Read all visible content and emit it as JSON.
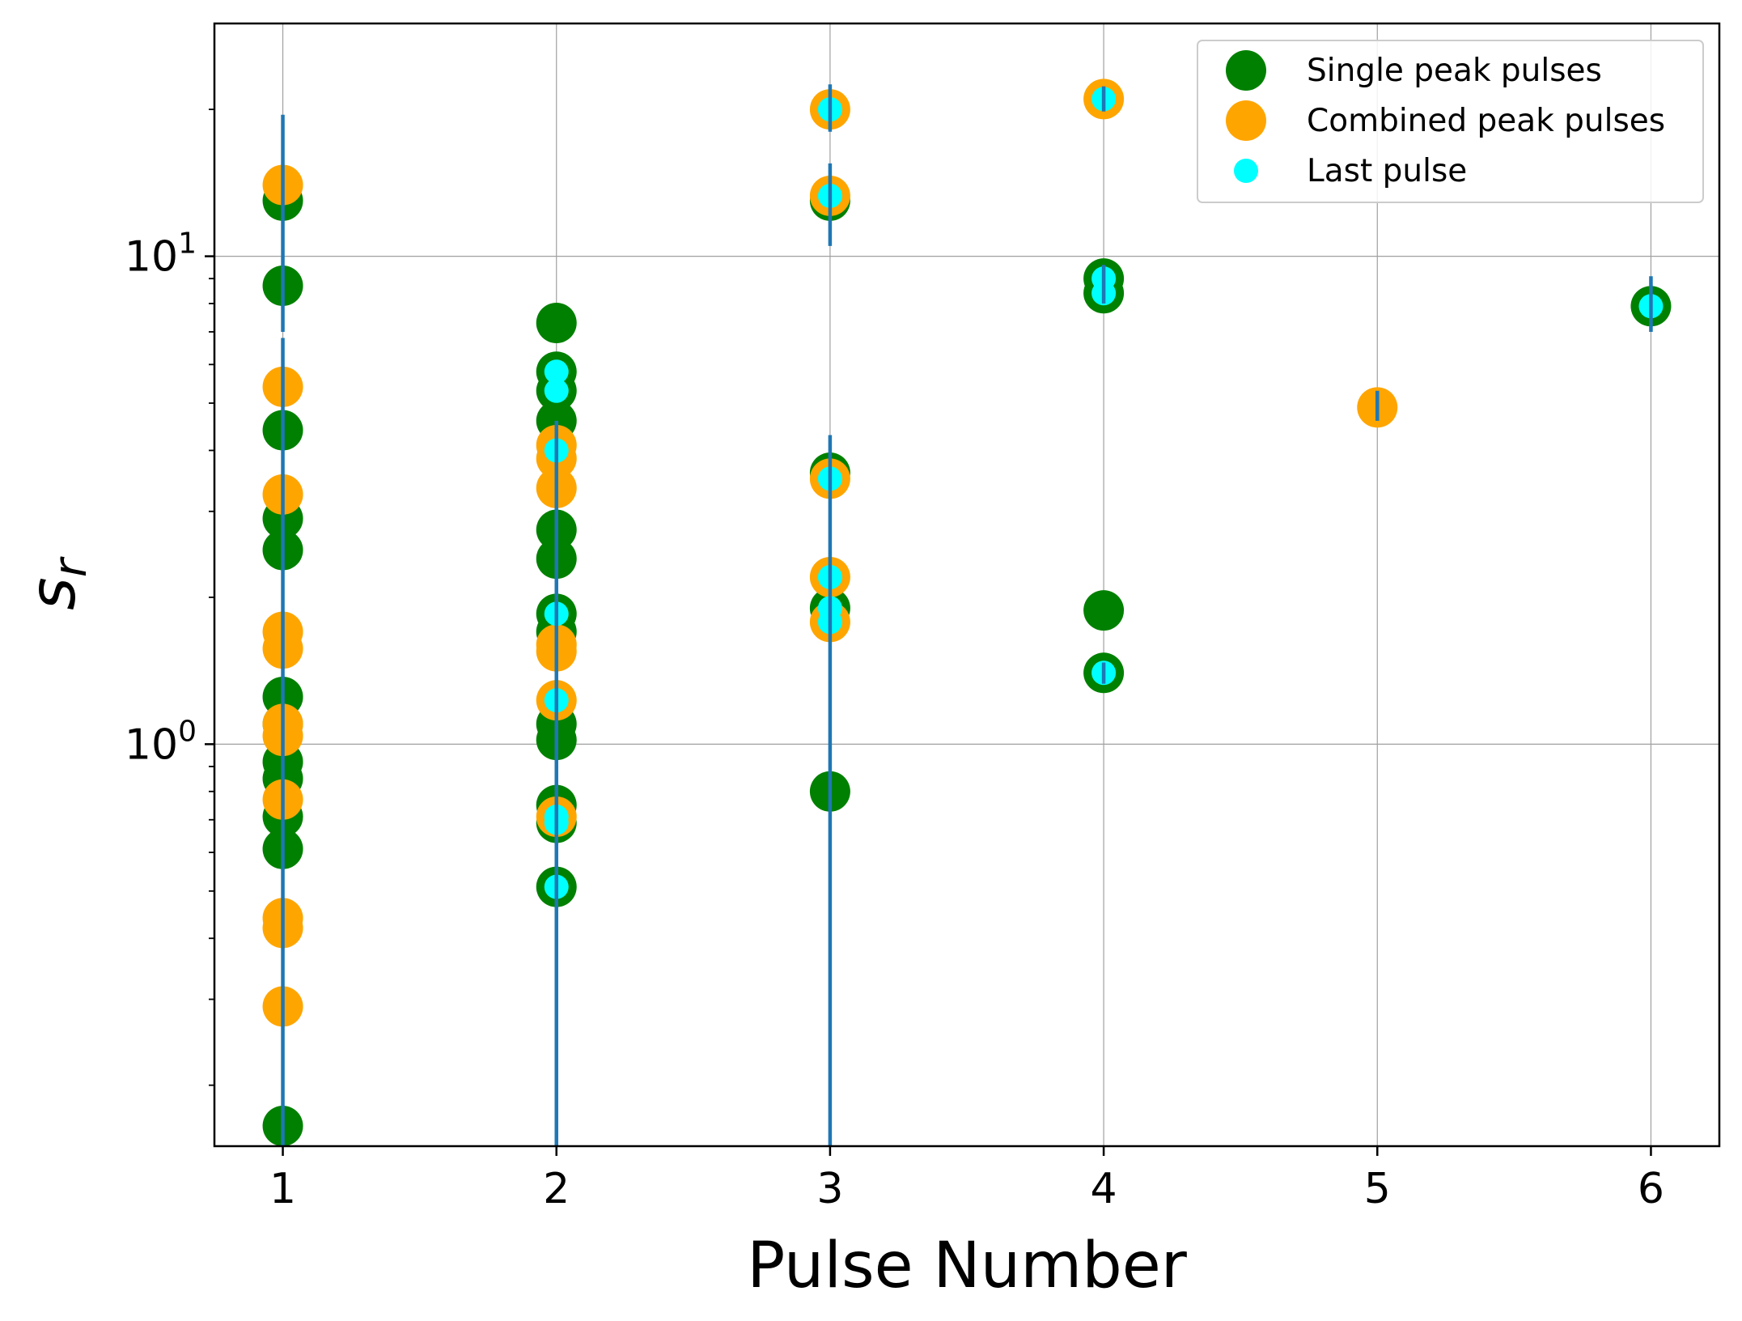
{
  "chart_data": {
    "type": "scatter",
    "title": "",
    "xlabel": "Pulse Number",
    "ylabel": "s_r",
    "ylabel_main": "s",
    "ylabel_sub": "r",
    "xlim": [
      0.75,
      6.25
    ],
    "ylim": [
      0.15,
      30
    ],
    "yscale": "log",
    "grid": true,
    "legend_position": "top-right",
    "x_ticks": [
      1,
      2,
      3,
      4,
      5,
      6
    ],
    "x_tick_labels": [
      "1",
      "2",
      "3",
      "4",
      "5",
      "6"
    ],
    "y_major_ticks": [
      1,
      10
    ],
    "y_tick_labels": [
      {
        "base": "10",
        "exp": "0"
      },
      {
        "base": "10",
        "exp": "1"
      }
    ],
    "y_minor_ticks": [
      0.2,
      0.3,
      0.4,
      0.5,
      0.6,
      0.7,
      0.8,
      0.9,
      2,
      3,
      4,
      5,
      6,
      7,
      8,
      9,
      20
    ],
    "colors": {
      "single": "#008000",
      "combined": "#ffa500",
      "last": "#00ffff",
      "errorbar": "#1f77b4",
      "grid": "#a0a0a0"
    },
    "series": [
      {
        "name": "Single peak pulses",
        "marker": "large-circle",
        "points": [
          {
            "x": 1,
            "y": 13.0
          },
          {
            "x": 1,
            "y": 8.7
          },
          {
            "x": 1,
            "y": 4.4
          },
          {
            "x": 1,
            "y": 2.9
          },
          {
            "x": 1,
            "y": 2.5
          },
          {
            "x": 1,
            "y": 1.25
          },
          {
            "x": 1,
            "y": 1.1
          },
          {
            "x": 1,
            "y": 0.92
          },
          {
            "x": 1,
            "y": 0.85
          },
          {
            "x": 1,
            "y": 0.71
          },
          {
            "x": 1,
            "y": 0.61
          },
          {
            "x": 1,
            "y": 0.165
          },
          {
            "x": 2,
            "y": 7.3
          },
          {
            "x": 2,
            "y": 5.8
          },
          {
            "x": 2,
            "y": 5.3
          },
          {
            "x": 2,
            "y": 4.6
          },
          {
            "x": 2,
            "y": 2.75
          },
          {
            "x": 2,
            "y": 2.4
          },
          {
            "x": 2,
            "y": 1.85
          },
          {
            "x": 2,
            "y": 1.7
          },
          {
            "x": 2,
            "y": 1.1
          },
          {
            "x": 2,
            "y": 1.02
          },
          {
            "x": 2,
            "y": 0.75
          },
          {
            "x": 2,
            "y": 0.69
          },
          {
            "x": 2,
            "y": 0.51
          },
          {
            "x": 3,
            "y": 13.0
          },
          {
            "x": 3,
            "y": 3.6
          },
          {
            "x": 3,
            "y": 1.9
          },
          {
            "x": 3,
            "y": 0.8
          },
          {
            "x": 4,
            "y": 9.0
          },
          {
            "x": 4,
            "y": 8.4
          },
          {
            "x": 4,
            "y": 1.88
          },
          {
            "x": 4,
            "y": 1.4
          },
          {
            "x": 6,
            "y": 7.9
          }
        ]
      },
      {
        "name": "Combined peak pulses",
        "marker": "large-circle",
        "points": [
          {
            "x": 1,
            "y": 14.0
          },
          {
            "x": 1,
            "y": 5.4
          },
          {
            "x": 1,
            "y": 3.25
          },
          {
            "x": 1,
            "y": 1.7
          },
          {
            "x": 1,
            "y": 1.57
          },
          {
            "x": 1,
            "y": 1.1
          },
          {
            "x": 1,
            "y": 1.04
          },
          {
            "x": 1,
            "y": 0.77
          },
          {
            "x": 1,
            "y": 0.44
          },
          {
            "x": 1,
            "y": 0.42
          },
          {
            "x": 1,
            "y": 0.29
          },
          {
            "x": 2,
            "y": 4.1
          },
          {
            "x": 2,
            "y": 3.85
          },
          {
            "x": 2,
            "y": 3.35
          },
          {
            "x": 2,
            "y": 1.6
          },
          {
            "x": 2,
            "y": 1.55
          },
          {
            "x": 2,
            "y": 1.23
          },
          {
            "x": 2,
            "y": 0.71
          },
          {
            "x": 3,
            "y": 20.0
          },
          {
            "x": 3,
            "y": 13.3
          },
          {
            "x": 3,
            "y": 3.5
          },
          {
            "x": 3,
            "y": 2.2
          },
          {
            "x": 3,
            "y": 1.78
          },
          {
            "x": 4,
            "y": 21.0
          },
          {
            "x": 5,
            "y": 4.9
          }
        ]
      },
      {
        "name": "Last pulse",
        "marker": "small-circle",
        "points": [
          {
            "x": 2,
            "y": 5.8
          },
          {
            "x": 2,
            "y": 5.3
          },
          {
            "x": 2,
            "y": 4.0
          },
          {
            "x": 2,
            "y": 1.85
          },
          {
            "x": 2,
            "y": 1.23
          },
          {
            "x": 2,
            "y": 0.71
          },
          {
            "x": 2,
            "y": 0.69
          },
          {
            "x": 2,
            "y": 0.51
          },
          {
            "x": 3,
            "y": 20.0
          },
          {
            "x": 3,
            "y": 13.3
          },
          {
            "x": 3,
            "y": 3.5
          },
          {
            "x": 3,
            "y": 2.2
          },
          {
            "x": 3,
            "y": 1.9
          },
          {
            "x": 3,
            "y": 1.78
          },
          {
            "x": 4,
            "y": 21.0
          },
          {
            "x": 4,
            "y": 9.0
          },
          {
            "x": 4,
            "y": 8.4
          },
          {
            "x": 4,
            "y": 1.4
          },
          {
            "x": 6,
            "y": 7.9
          }
        ]
      }
    ],
    "error_bars": [
      {
        "x": 1,
        "y_low": 7.0,
        "y_high": 19.5
      },
      {
        "x": 1,
        "y_low": 0.15,
        "y_high": 6.8
      },
      {
        "x": 2,
        "y_low": 0.15,
        "y_high": 4.6
      },
      {
        "x": 3,
        "y_low": 18.0,
        "y_high": 22.5
      },
      {
        "x": 3,
        "y_low": 10.5,
        "y_high": 15.5
      },
      {
        "x": 3,
        "y_low": 0.15,
        "y_high": 4.3
      },
      {
        "x": 4,
        "y_low": 19.8,
        "y_high": 22.3
      },
      {
        "x": 4,
        "y_low": 8.0,
        "y_high": 9.6
      },
      {
        "x": 4,
        "y_low": 1.33,
        "y_high": 1.47
      },
      {
        "x": 5,
        "y_low": 4.6,
        "y_high": 5.3
      },
      {
        "x": 6,
        "y_low": 7.0,
        "y_high": 9.1
      }
    ]
  }
}
